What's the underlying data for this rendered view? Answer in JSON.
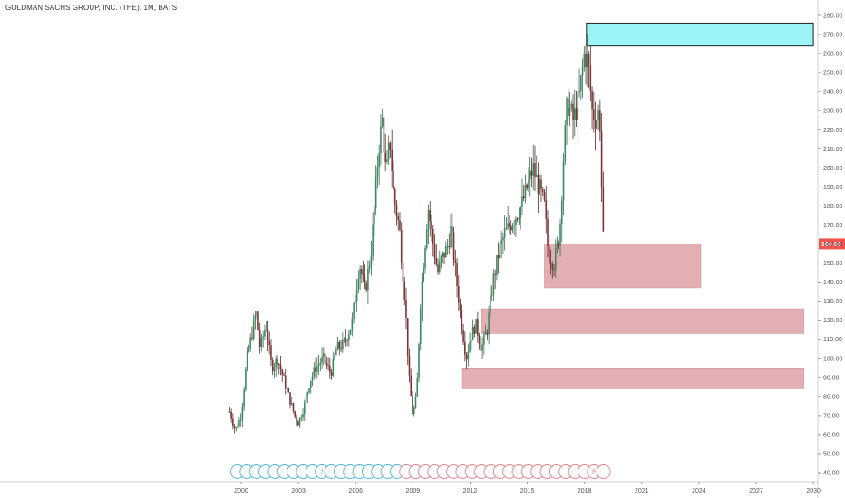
{
  "chart_data": {
    "type": "candlestick",
    "title": "GOLDMAN SACHS GROUP, INC. (THE), 1M, BATS",
    "interval": "1M",
    "ylim": [
      35,
      282
    ],
    "x_range": [
      1999.0,
      2030.0
    ],
    "x_tick_labels": [
      "2000",
      "2003",
      "2006",
      "2009",
      "2012",
      "2015",
      "2018",
      "2021",
      "2024",
      "2027",
      "2030"
    ],
    "y_tick_labels": [
      "40.00",
      "50.00",
      "60.00",
      "70.00",
      "80.00",
      "90.00",
      "100.00",
      "110.00",
      "120.00",
      "130.00",
      "140.00",
      "150.00",
      "160.00",
      "170.00",
      "180.00",
      "190.00",
      "200.00",
      "210.00",
      "220.00",
      "230.00",
      "240.00",
      "250.00",
      "260.00",
      "270.00",
      "280.00"
    ],
    "last_price": 160.05,
    "last_price_label": "160.05",
    "colors": {
      "up": "#26a69a",
      "down": "#ef5350",
      "price_line": "#ef5350",
      "supply_zone": "#9cf3f5",
      "demand_zone": "#dfa8ab"
    },
    "anchor_points": [
      [
        1999.4,
        72
      ],
      [
        1999.7,
        62
      ],
      [
        2000.0,
        70
      ],
      [
        2000.3,
        100
      ],
      [
        2000.6,
        115
      ],
      [
        2000.8,
        125
      ],
      [
        2001.0,
        105
      ],
      [
        2001.3,
        118
      ],
      [
        2001.6,
        95
      ],
      [
        2001.9,
        100
      ],
      [
        2002.2,
        90
      ],
      [
        2002.5,
        80
      ],
      [
        2002.8,
        70
      ],
      [
        2003.0,
        66
      ],
      [
        2003.3,
        75
      ],
      [
        2003.6,
        88
      ],
      [
        2003.9,
        95
      ],
      [
        2004.3,
        100
      ],
      [
        2004.7,
        92
      ],
      [
        2005.0,
        105
      ],
      [
        2005.4,
        108
      ],
      [
        2005.8,
        118
      ],
      [
        2006.2,
        150
      ],
      [
        2006.5,
        135
      ],
      [
        2006.8,
        155
      ],
      [
        2007.0,
        180
      ],
      [
        2007.2,
        210
      ],
      [
        2007.4,
        225
      ],
      [
        2007.6,
        195
      ],
      [
        2007.8,
        215
      ],
      [
        2008.0,
        185
      ],
      [
        2008.3,
        168
      ],
      [
        2008.6,
        130
      ],
      [
        2008.8,
        90
      ],
      [
        2009.0,
        70
      ],
      [
        2009.2,
        80
      ],
      [
        2009.4,
        130
      ],
      [
        2009.6,
        155
      ],
      [
        2009.8,
        180
      ],
      [
        2010.0,
        165
      ],
      [
        2010.3,
        145
      ],
      [
        2010.5,
        152
      ],
      [
        2010.8,
        158
      ],
      [
        2011.0,
        168
      ],
      [
        2011.3,
        140
      ],
      [
        2011.6,
        115
      ],
      [
        2011.8,
        100
      ],
      [
        2012.0,
        110
      ],
      [
        2012.3,
        118
      ],
      [
        2012.6,
        105
      ],
      [
        2012.9,
        115
      ],
      [
        2013.2,
        140
      ],
      [
        2013.5,
        155
      ],
      [
        2013.8,
        165
      ],
      [
        2014.1,
        170
      ],
      [
        2014.4,
        175
      ],
      [
        2014.7,
        180
      ],
      [
        2015.0,
        190
      ],
      [
        2015.3,
        200
      ],
      [
        2015.6,
        190
      ],
      [
        2015.9,
        180
      ],
      [
        2016.1,
        155
      ],
      [
        2016.4,
        150
      ],
      [
        2016.7,
        165
      ],
      [
        2016.9,
        205
      ],
      [
        2017.1,
        235
      ],
      [
        2017.4,
        225
      ],
      [
        2017.7,
        235
      ],
      [
        2018.0,
        260
      ],
      [
        2018.2,
        255
      ],
      [
        2018.4,
        230
      ],
      [
        2018.6,
        225
      ],
      [
        2018.8,
        230
      ],
      [
        2018.95,
        170
      ],
      [
        2019.05,
        160.05
      ]
    ],
    "zones": [
      {
        "kind": "supply",
        "price_top": 276,
        "price_bottom": 264,
        "x_start": 2018.1,
        "x_end": 2030.0
      },
      {
        "kind": "demand",
        "price_top": 160,
        "price_bottom": 137,
        "x_start": 2015.9,
        "x_end": 2024.1
      },
      {
        "kind": "demand",
        "price_top": 126,
        "price_bottom": 113,
        "x_start": 2012.6,
        "x_end": 2029.5
      },
      {
        "kind": "demand",
        "price_top": 95,
        "price_bottom": 84,
        "x_start": 2011.6,
        "x_end": 2029.5
      }
    ],
    "event_markers": {
      "count": 40,
      "dividend_count": 18,
      "dividend_color": "#4fb3d9",
      "split_color": "#e0828a",
      "labels": {
        "9": "ƒ",
        "38": "E"
      }
    }
  }
}
